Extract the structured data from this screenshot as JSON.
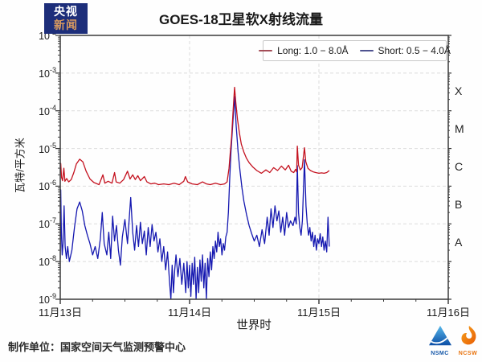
{
  "badge": {
    "line1": "央视",
    "line2": "新闻"
  },
  "title": "GOES-18卫星软X射线流量",
  "legend": [
    {
      "label": "Long: 1.0 − 8.0Å",
      "marker_color": "#a44e58",
      "series_color": "#c4121f"
    },
    {
      "label": "Short: 0.5 − 4.0Å",
      "marker_color": "#4f5390",
      "series_color": "#1518b0"
    }
  ],
  "footer": {
    "credit": "制作单位：国家空间天气监测预警中心",
    "logos": [
      {
        "name": "NSMC",
        "color": "#1457a8"
      },
      {
        "name": "NCSW",
        "color": "#e8720c"
      }
    ]
  },
  "chart_data": {
    "type": "line",
    "title": "GOES-18卫星软X射线流量",
    "xlabel": "世界时",
    "ylabel": "瓦特/平方米",
    "yscale": "log",
    "ylim": [
      1e-09,
      0.01
    ],
    "xlim_days": [
      0,
      3
    ],
    "grid": "dashed",
    "legend_position": "top-right-inside",
    "y_tick_exponents": [
      -2,
      -3,
      -4,
      -5,
      -6,
      -7,
      -8,
      -9
    ],
    "x_ticks": [
      {
        "pos": 0,
        "label": "11月13日"
      },
      {
        "pos": 1,
        "label": "11月14日"
      },
      {
        "pos": 2,
        "label": "11月15日"
      },
      {
        "pos": 3,
        "label": "11月16日"
      }
    ],
    "flare_classes": [
      {
        "label": "X",
        "log_center": -3.5
      },
      {
        "label": "M",
        "log_center": -4.5
      },
      {
        "label": "C",
        "log_center": -5.5
      },
      {
        "label": "B",
        "log_center": -6.5
      },
      {
        "label": "A",
        "log_center": -7.5
      }
    ],
    "series": [
      {
        "name": "Long: 1.0 − 8.0Å",
        "color": "#c4121f",
        "points": [
          [
            0.0,
            2.4e-06
          ],
          [
            0.004,
            4e-06
          ],
          [
            0.01,
            1.7e-06
          ],
          [
            0.018,
            1.4e-06
          ],
          [
            0.028,
            3e-06
          ],
          [
            0.036,
            1.35e-06
          ],
          [
            0.05,
            1.6e-06
          ],
          [
            0.065,
            1.3e-06
          ],
          [
            0.085,
            1.5e-06
          ],
          [
            0.105,
            2.3e-06
          ],
          [
            0.125,
            3.9e-06
          ],
          [
            0.15,
            5.2e-06
          ],
          [
            0.175,
            4.4e-06
          ],
          [
            0.2,
            2.5e-06
          ],
          [
            0.23,
            1.55e-06
          ],
          [
            0.26,
            1.25e-06
          ],
          [
            0.3,
            1.1e-06
          ],
          [
            0.33,
            2e-06
          ],
          [
            0.345,
            1.2e-06
          ],
          [
            0.37,
            1.35e-06
          ],
          [
            0.4,
            1.2e-06
          ],
          [
            0.42,
            2.3e-06
          ],
          [
            0.432,
            1.3e-06
          ],
          [
            0.46,
            1.2e-06
          ],
          [
            0.49,
            1.5e-06
          ],
          [
            0.52,
            2.5e-06
          ],
          [
            0.54,
            1.55e-06
          ],
          [
            0.56,
            2e-06
          ],
          [
            0.58,
            1.5e-06
          ],
          [
            0.6,
            1.9e-06
          ],
          [
            0.62,
            1.4e-06
          ],
          [
            0.65,
            1.8e-06
          ],
          [
            0.67,
            1.3e-06
          ],
          [
            0.7,
            1.15e-06
          ],
          [
            0.73,
            1.2e-06
          ],
          [
            0.76,
            1.1e-06
          ],
          [
            0.8,
            1.15e-06
          ],
          [
            0.84,
            1.1e-06
          ],
          [
            0.88,
            1.2e-06
          ],
          [
            0.92,
            1.1e-06
          ],
          [
            0.955,
            1.35e-06
          ],
          [
            0.968,
            1.8e-06
          ],
          [
            0.985,
            1.3e-06
          ],
          [
            1.02,
            1.15e-06
          ],
          [
            1.06,
            1.1e-06
          ],
          [
            1.1,
            1.3e-06
          ],
          [
            1.13,
            1.15e-06
          ],
          [
            1.16,
            1.1e-06
          ],
          [
            1.2,
            1.2e-06
          ],
          [
            1.24,
            1.1e-06
          ],
          [
            1.27,
            1.15e-06
          ],
          [
            1.29,
            1.3e-06
          ],
          [
            1.305,
            3e-06
          ],
          [
            1.315,
            8e-06
          ],
          [
            1.325,
            2e-05
          ],
          [
            1.335,
            8e-05
          ],
          [
            1.348,
            0.00042
          ],
          [
            1.358,
            0.00016
          ],
          [
            1.37,
            6e-05
          ],
          [
            1.385,
            2.6e-05
          ],
          [
            1.4,
            1.3e-05
          ],
          [
            1.42,
            8e-06
          ],
          [
            1.44,
            5.5e-06
          ],
          [
            1.46,
            4.2e-06
          ],
          [
            1.49,
            3.2e-06
          ],
          [
            1.52,
            2.6e-06
          ],
          [
            1.555,
            2.2e-06
          ],
          [
            1.59,
            2.7e-06
          ],
          [
            1.62,
            2.3e-06
          ],
          [
            1.65,
            3.1e-06
          ],
          [
            1.68,
            2.6e-06
          ],
          [
            1.71,
            3.4e-06
          ],
          [
            1.74,
            2.7e-06
          ],
          [
            1.765,
            3.6e-06
          ],
          [
            1.785,
            2.5e-06
          ],
          [
            1.805,
            2.3e-06
          ],
          [
            1.82,
            2.8e-06
          ],
          [
            1.828,
            2.4e-06
          ],
          [
            1.833,
            1.15e-05
          ],
          [
            1.842,
            3.6e-06
          ],
          [
            1.856,
            2.7e-06
          ],
          [
            1.87,
            3.1e-06
          ],
          [
            1.888,
            1.05e-05
          ],
          [
            1.898,
            4.5e-06
          ],
          [
            1.915,
            3e-06
          ],
          [
            1.935,
            2.6e-06
          ],
          [
            1.955,
            2.4e-06
          ],
          [
            1.975,
            2.3e-06
          ],
          [
            2.0,
            2.2e-06
          ],
          [
            2.02,
            2.25e-06
          ],
          [
            2.04,
            2.2e-06
          ],
          [
            2.06,
            2.3e-06
          ],
          [
            2.08,
            2.6e-06
          ]
        ]
      },
      {
        "name": "Short: 0.5 − 4.0Å",
        "color": "#1518b0",
        "points": [
          [
            0.0,
            1.2e-08
          ],
          [
            0.004,
            8e-07
          ],
          [
            0.009,
            6e-08
          ],
          [
            0.015,
            1.5e-08
          ],
          [
            0.022,
            3e-08
          ],
          [
            0.03,
            3e-07
          ],
          [
            0.038,
            2.5e-08
          ],
          [
            0.048,
            1.2e-08
          ],
          [
            0.058,
            2.5e-08
          ],
          [
            0.07,
            1e-08
          ],
          [
            0.09,
            2e-08
          ],
          [
            0.11,
            8e-08
          ],
          [
            0.13,
            2.5e-07
          ],
          [
            0.15,
            3.8e-07
          ],
          [
            0.17,
            2.2e-07
          ],
          [
            0.19,
            9e-08
          ],
          [
            0.21,
            5e-08
          ],
          [
            0.23,
            3e-08
          ],
          [
            0.25,
            1.5e-08
          ],
          [
            0.27,
            2.5e-08
          ],
          [
            0.29,
            1.2e-08
          ],
          [
            0.31,
            4e-08
          ],
          [
            0.325,
            2e-07
          ],
          [
            0.34,
            3e-08
          ],
          [
            0.36,
            1.5e-08
          ],
          [
            0.375,
            6e-08
          ],
          [
            0.39,
            1.2e-08
          ],
          [
            0.405,
            1.6e-07
          ],
          [
            0.42,
            3.5e-08
          ],
          [
            0.435,
            9e-08
          ],
          [
            0.45,
            2e-08
          ],
          [
            0.465,
            8e-09
          ],
          [
            0.48,
            4.5e-08
          ],
          [
            0.5,
            1.3e-07
          ],
          [
            0.52,
            3e-08
          ],
          [
            0.545,
            5e-07
          ],
          [
            0.56,
            6e-08
          ],
          [
            0.575,
            2e-08
          ],
          [
            0.59,
            9e-08
          ],
          [
            0.605,
            2.5e-08
          ],
          [
            0.62,
            1.1e-07
          ],
          [
            0.635,
            3e-08
          ],
          [
            0.65,
            6.5e-08
          ],
          [
            0.665,
            1.5e-08
          ],
          [
            0.68,
            8e-08
          ],
          [
            0.695,
            2.5e-08
          ],
          [
            0.71,
            9.5e-08
          ],
          [
            0.725,
            3.5e-08
          ],
          [
            0.74,
            6e-08
          ],
          [
            0.755,
            1.8e-08
          ],
          [
            0.77,
            4e-08
          ],
          [
            0.785,
            1e-08
          ],
          [
            0.8,
            2.5e-08
          ],
          [
            0.815,
            6e-09
          ],
          [
            0.83,
            1.8e-08
          ],
          [
            0.845,
            3e-09
          ],
          [
            0.855,
            1e-09
          ],
          [
            0.865,
            8e-09
          ],
          [
            0.875,
            1.5e-09
          ],
          [
            0.885,
            6e-09
          ],
          [
            0.895,
            1.5e-08
          ],
          [
            0.91,
            4e-09
          ],
          [
            0.925,
            1.2e-08
          ],
          [
            0.94,
            2.5e-09
          ],
          [
            0.955,
            9e-09
          ],
          [
            0.97,
            1.5e-09
          ],
          [
            0.98,
            1e-08
          ],
          [
            0.99,
            2e-09
          ],
          [
            1.0,
            8e-09
          ],
          [
            1.01,
            1.2e-09
          ],
          [
            1.02,
            9e-09
          ],
          [
            1.03,
            2.5e-09
          ],
          [
            1.04,
            1.3e-08
          ],
          [
            1.05,
            1e-09
          ],
          [
            1.06,
            7e-09
          ],
          [
            1.07,
            1.5e-09
          ],
          [
            1.08,
            1.1e-08
          ],
          [
            1.09,
            3e-09
          ],
          [
            1.1,
            1.5e-08
          ],
          [
            1.11,
            2e-09
          ],
          [
            1.12,
            9e-09
          ],
          [
            1.13,
            1e-09
          ],
          [
            1.14,
            1.2e-08
          ],
          [
            1.15,
            4e-09
          ],
          [
            1.16,
            1.8e-08
          ],
          [
            1.17,
            6e-09
          ],
          [
            1.18,
            2.5e-08
          ],
          [
            1.19,
            1.2e-08
          ],
          [
            1.2,
            3.5e-08
          ],
          [
            1.21,
            1.8e-08
          ],
          [
            1.22,
            6e-08
          ],
          [
            1.23,
            2.5e-08
          ],
          [
            1.24,
            4e-08
          ],
          [
            1.25,
            1.5e-08
          ],
          [
            1.26,
            3e-08
          ],
          [
            1.27,
            2e-08
          ],
          [
            1.28,
            4.5e-08
          ],
          [
            1.29,
            6e-08
          ],
          [
            1.3,
            2e-07
          ],
          [
            1.31,
            1.5e-06
          ],
          [
            1.32,
            8e-06
          ],
          [
            1.335,
            5e-05
          ],
          [
            1.348,
            0.00024
          ],
          [
            1.36,
            4e-05
          ],
          [
            1.375,
            8e-06
          ],
          [
            1.39,
            2.5e-06
          ],
          [
            1.405,
            9e-07
          ],
          [
            1.42,
            4e-07
          ],
          [
            1.44,
            1.8e-07
          ],
          [
            1.46,
            9e-08
          ],
          [
            1.48,
            5.5e-08
          ],
          [
            1.5,
            3.5e-08
          ],
          [
            1.52,
            5e-08
          ],
          [
            1.54,
            2.5e-08
          ],
          [
            1.56,
            7e-08
          ],
          [
            1.58,
            3e-08
          ],
          [
            1.6,
            1.5e-07
          ],
          [
            1.615,
            5e-08
          ],
          [
            1.63,
            2.5e-07
          ],
          [
            1.645,
            8e-08
          ],
          [
            1.66,
            3e-07
          ],
          [
            1.675,
            1.2e-07
          ],
          [
            1.69,
            2.2e-07
          ],
          [
            1.705,
            6e-08
          ],
          [
            1.72,
            1.5e-07
          ],
          [
            1.735,
            5e-08
          ],
          [
            1.75,
            2e-07
          ],
          [
            1.765,
            8e-08
          ],
          [
            1.78,
            1.2e-07
          ],
          [
            1.8,
            9e-08
          ],
          [
            1.815,
            1.5e-07
          ],
          [
            1.825,
            1e-07
          ],
          [
            1.833,
            3.5e-06
          ],
          [
            1.842,
            2e-07
          ],
          [
            1.852,
            8e-08
          ],
          [
            1.862,
            5e-08
          ],
          [
            1.872,
            1.2e-07
          ],
          [
            1.888,
            5e-06
          ],
          [
            1.9,
            3e-07
          ],
          [
            1.91,
            1e-07
          ],
          [
            1.92,
            5e-08
          ],
          [
            1.93,
            8e-08
          ],
          [
            1.94,
            3.5e-08
          ],
          [
            1.95,
            6e-08
          ],
          [
            1.96,
            2.5e-08
          ],
          [
            1.97,
            5e-08
          ],
          [
            1.98,
            2e-08
          ],
          [
            1.99,
            4e-08
          ],
          [
            2.0,
            3e-08
          ],
          [
            2.01,
            5.5e-08
          ],
          [
            2.02,
            2.5e-08
          ],
          [
            2.03,
            4.5e-08
          ],
          [
            2.04,
            2e-08
          ],
          [
            2.05,
            3.5e-08
          ],
          [
            2.06,
            1.8e-08
          ],
          [
            2.07,
            1.5e-07
          ],
          [
            2.08,
            2.5e-08
          ]
        ]
      }
    ]
  }
}
